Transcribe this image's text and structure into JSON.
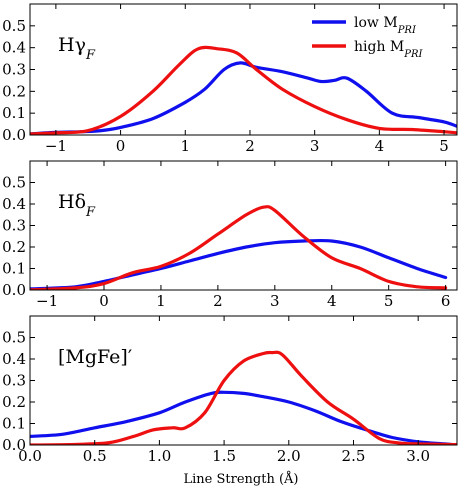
{
  "colors": {
    "low": "#1010ee",
    "high": "#ee1010",
    "axis": "#000000"
  },
  "legend": {
    "placement": "top-right",
    "entries": [
      {
        "key": "low",
        "label": "low M",
        "sub": "PRI"
      },
      {
        "key": "high",
        "label": "high M",
        "sub": "PRI"
      }
    ]
  },
  "xlabel": "Line Strength (Å)",
  "chart_data": [
    {
      "type": "line",
      "label": "Hγ",
      "label_sub": "F",
      "xlim": [
        -1.4,
        5.2
      ],
      "ylim": [
        0,
        0.6
      ],
      "xticks": [
        -1,
        0,
        1,
        2,
        3,
        4,
        5
      ],
      "yticks": [
        0.0,
        0.1,
        0.2,
        0.3,
        0.4,
        0.5
      ],
      "series": [
        {
          "key": "low",
          "name": "low M_PRI",
          "x": [
            -1.4,
            -1.0,
            -0.6,
            -0.3,
            0.0,
            0.5,
            1.0,
            1.3,
            1.6,
            1.85,
            2.1,
            2.5,
            2.9,
            3.1,
            3.3,
            3.5,
            3.8,
            4.2,
            4.6,
            5.0,
            5.2
          ],
          "y": [
            0.005,
            0.012,
            0.015,
            0.02,
            0.035,
            0.075,
            0.15,
            0.21,
            0.3,
            0.33,
            0.31,
            0.29,
            0.26,
            0.245,
            0.25,
            0.26,
            0.2,
            0.1,
            0.08,
            0.06,
            0.04
          ]
        },
        {
          "key": "high",
          "name": "high M_PRI",
          "x": [
            -1.4,
            -1.0,
            -0.5,
            0.0,
            0.5,
            0.9,
            1.2,
            1.5,
            1.8,
            2.1,
            2.5,
            3.0,
            3.5,
            4.0,
            4.5,
            5.0,
            5.2
          ],
          "y": [
            0.005,
            0.01,
            0.02,
            0.085,
            0.2,
            0.32,
            0.395,
            0.395,
            0.375,
            0.3,
            0.21,
            0.13,
            0.07,
            0.03,
            0.025,
            0.015,
            0.01
          ]
        }
      ]
    },
    {
      "type": "line",
      "label": "Hδ",
      "label_sub": "F",
      "xlim": [
        -1.3,
        6.2
      ],
      "ylim": [
        0,
        0.6
      ],
      "xticks": [
        -1,
        0,
        1,
        2,
        3,
        4,
        5,
        6
      ],
      "yticks": [
        0.0,
        0.1,
        0.2,
        0.3,
        0.4,
        0.5
      ],
      "series": [
        {
          "key": "low",
          "name": "low M_PRI",
          "x": [
            -1.3,
            -0.5,
            0.0,
            0.5,
            1.0,
            1.5,
            2.0,
            2.5,
            3.0,
            3.5,
            4.0,
            4.5,
            5.0,
            5.5,
            6.0
          ],
          "y": [
            0.005,
            0.015,
            0.04,
            0.07,
            0.1,
            0.135,
            0.17,
            0.2,
            0.22,
            0.228,
            0.228,
            0.2,
            0.15,
            0.1,
            0.058
          ]
        },
        {
          "key": "high",
          "name": "high M_PRI",
          "x": [
            -1.3,
            -0.5,
            0.0,
            0.5,
            1.0,
            1.5,
            2.0,
            2.5,
            2.8,
            3.0,
            3.5,
            4.0,
            4.5,
            5.0,
            5.5,
            6.0
          ],
          "y": [
            0.0,
            0.01,
            0.03,
            0.08,
            0.11,
            0.17,
            0.26,
            0.35,
            0.385,
            0.37,
            0.25,
            0.15,
            0.1,
            0.04,
            0.015,
            0.01
          ]
        }
      ]
    },
    {
      "type": "line",
      "label": "[MgFe]′",
      "label_sub": "",
      "xlim": [
        0.0,
        3.3
      ],
      "ylim": [
        0,
        0.6
      ],
      "xticks": [
        0.0,
        0.5,
        1.0,
        1.5,
        2.0,
        2.5,
        3.0
      ],
      "yticks": [
        0.0,
        0.1,
        0.2,
        0.3,
        0.4,
        0.5
      ],
      "series": [
        {
          "key": "low",
          "name": "low M_PRI",
          "x": [
            0.0,
            0.25,
            0.5,
            0.75,
            1.0,
            1.2,
            1.4,
            1.5,
            1.65,
            1.8,
            2.0,
            2.2,
            2.4,
            2.6,
            2.8,
            3.0,
            3.2,
            3.3
          ],
          "y": [
            0.04,
            0.05,
            0.08,
            0.11,
            0.15,
            0.2,
            0.24,
            0.245,
            0.24,
            0.225,
            0.2,
            0.16,
            0.11,
            0.07,
            0.035,
            0.015,
            0.005,
            0.0
          ]
        },
        {
          "key": "high",
          "name": "high M_PRI",
          "x": [
            0.0,
            0.3,
            0.6,
            0.8,
            0.95,
            1.1,
            1.2,
            1.35,
            1.5,
            1.65,
            1.8,
            1.87,
            1.95,
            2.1,
            2.3,
            2.5,
            2.7,
            2.85,
            3.0,
            3.3
          ],
          "y": [
            0.0,
            0.002,
            0.01,
            0.04,
            0.07,
            0.08,
            0.08,
            0.15,
            0.3,
            0.39,
            0.425,
            0.43,
            0.42,
            0.32,
            0.2,
            0.12,
            0.03,
            0.01,
            0.005,
            0.002
          ]
        }
      ]
    }
  ]
}
